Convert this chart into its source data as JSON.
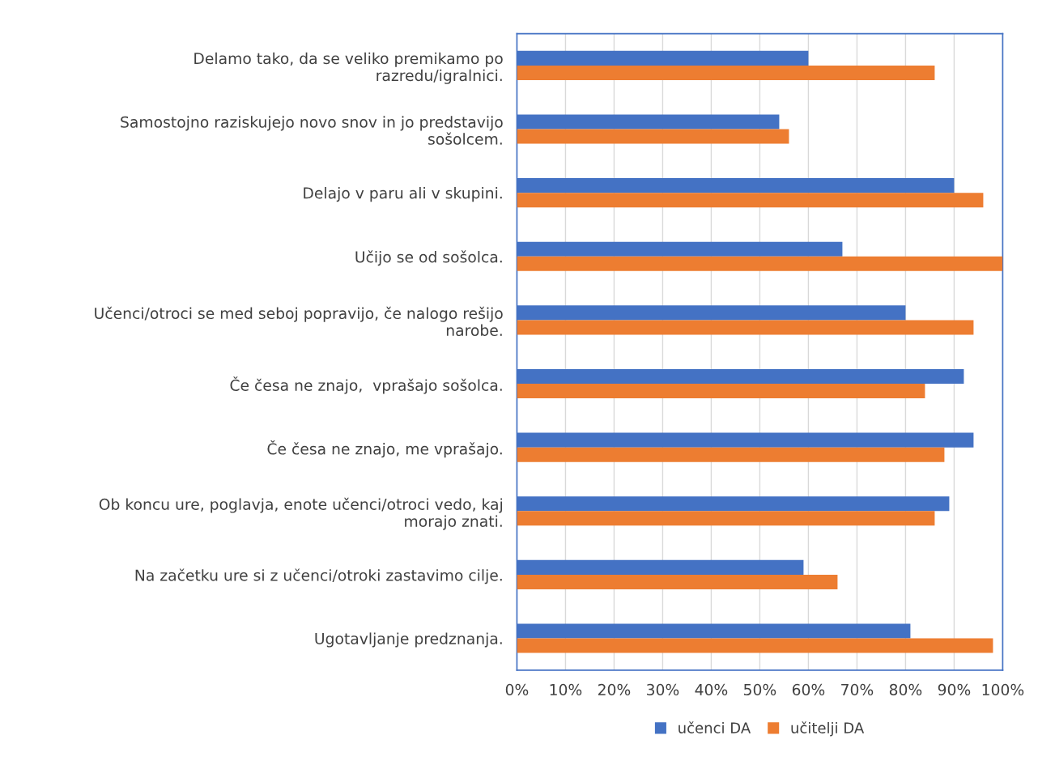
{
  "chart_data": {
    "type": "bar",
    "orientation": "horizontal",
    "categories": [
      "Delamo tako, da se veliko premikamo po\nrazredu/igralnici.",
      "Samostojno raziskujejo novo snov in jo predstavijo\nsošolcem.",
      "Delajo v paru ali v skupini.",
      "Učijo se od sošolca.",
      "Učenci/otroci se med seboj popravijo, če nalogo rešijo\nnarobe.",
      "Če česa ne znajo,  vprašajo sošolca.",
      "Če česa ne znajo, me vprašajo.",
      "Ob koncu ure, poglavja, enote učenci/otroci vedo, kaj\nmorajo znati.",
      "Na začetku ure si z učenci/otroki zastavimo cilje.",
      "Ugotavljanje predznanja."
    ],
    "series": [
      {
        "name": "učenci DA",
        "color": "#4472c4",
        "values": [
          60,
          54,
          90,
          67,
          80,
          92,
          94,
          89,
          59,
          81
        ]
      },
      {
        "name": "učitelji DA",
        "color": "#ed7d31",
        "values": [
          86,
          56,
          96,
          100,
          94,
          84,
          88,
          86,
          66,
          98
        ]
      }
    ],
    "xlim": [
      0,
      100
    ],
    "xticks": [
      {
        "value": 0,
        "label": "0%"
      },
      {
        "value": 10,
        "label": "10%"
      },
      {
        "value": 20,
        "label": "20%"
      },
      {
        "value": 30,
        "label": "30%"
      },
      {
        "value": 40,
        "label": "40%"
      },
      {
        "value": 50,
        "label": "50%"
      },
      {
        "value": 60,
        "label": "60%"
      },
      {
        "value": 70,
        "label": "70%"
      },
      {
        "value": 80,
        "label": "80%"
      },
      {
        "value": 90,
        "label": "90%"
      },
      {
        "value": 100,
        "label": "100%"
      }
    ],
    "grid": "x",
    "legend": "bottom"
  }
}
